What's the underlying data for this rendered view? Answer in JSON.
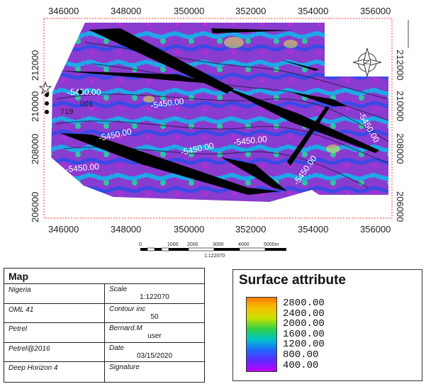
{
  "map": {
    "x_ticks": [
      "346000",
      "348000",
      "350000",
      "352000",
      "354000",
      "356000"
    ],
    "y_ticks": [
      "212000",
      "210000",
      "208000",
      "206000"
    ],
    "contour_labels": [
      "-5450.00",
      "-5450.00",
      "-5450.00",
      "-5450.00",
      "-5450.00",
      "-5450.00",
      "-5450.00",
      "-5450.00"
    ],
    "well_labels": [
      "001",
      "719"
    ],
    "scale_ticks": [
      "0",
      "1000",
      "2000",
      "3000",
      "4000",
      "5000m"
    ],
    "scale_ratio": "1:122070",
    "north_arrow": "compass-north-icon"
  },
  "info": {
    "title": "Map",
    "rows": [
      {
        "left": "Nigeria",
        "right_label": "Scale",
        "right_value": "1:122070"
      },
      {
        "left": "OML 41",
        "right_label": "Contour inc",
        "right_value": "50"
      },
      {
        "left": "Petrel",
        "right_label": "Bernard.M",
        "right_value": "user"
      },
      {
        "left": "Petrel@2016",
        "right_label": "Date",
        "right_value": "03/15/2020"
      },
      {
        "left": "Deep Horizon 4",
        "right_label": "Signature",
        "right_value": ""
      }
    ]
  },
  "legend": {
    "title": "Surface attribute",
    "ticks": [
      "2800.00",
      "2400.00",
      "2000.00",
      "1600.00",
      "1200.00",
      "800.00",
      "400.00"
    ],
    "colors": [
      "#ff7a00",
      "#c8e100",
      "#2dd04a",
      "#00c4c8",
      "#1e6aff",
      "#5a2cff",
      "#c000ff"
    ]
  }
}
